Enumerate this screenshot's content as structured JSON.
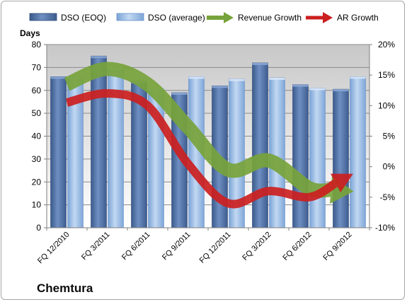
{
  "company": "Chemtura",
  "chart_data": {
    "type": "bar",
    "categories": [
      "FQ 12/2010",
      "FQ 3/2011",
      "FQ 6/2011",
      "FQ 9/2011",
      "FQ 12/2011",
      "FQ 3/2012",
      "FQ 6/2012",
      "FQ 9/2012"
    ],
    "ylabel": "Days",
    "ylim": [
      0,
      80
    ],
    "y_ticks": [
      0,
      10,
      20,
      30,
      40,
      50,
      60,
      70,
      80
    ],
    "y2lim": [
      -10,
      20
    ],
    "y2_ticks": [
      "-10%",
      "-5%",
      "0%",
      "5%",
      "10%",
      "15%",
      "20%"
    ],
    "y2_tick_values": [
      -10,
      -5,
      0,
      5,
      10,
      15,
      20
    ],
    "legend_position": "top",
    "grid": true,
    "series": [
      {
        "name": "DSO (EOQ)",
        "type": "bar",
        "axis": "left",
        "color": "#4f6fa3",
        "values": [
          66,
          75,
          64,
          59,
          62,
          72,
          62.5,
          60.5
        ]
      },
      {
        "name": "DSO (average)",
        "type": "bar",
        "axis": "left",
        "color": "#8db4e2",
        "values": [
          66,
          70,
          61,
          66,
          65,
          65.5,
          61,
          66
        ]
      },
      {
        "name": "Revenue Growth",
        "type": "arrow",
        "axis": "right",
        "color": "#77a33b",
        "values": [
          13.5,
          16,
          13.5,
          6.5,
          -0.5,
          1,
          -3.5,
          -4
        ]
      },
      {
        "name": "AR Growth",
        "type": "arrow",
        "axis": "right",
        "color": "#cc1f1f",
        "values": [
          10.5,
          12,
          10,
          0.5,
          -6,
          -4,
          -5,
          -1.5
        ]
      }
    ]
  }
}
